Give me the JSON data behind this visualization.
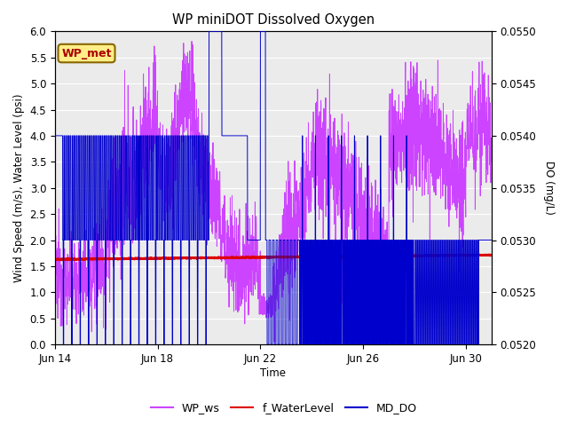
{
  "title": "WP miniDOT Dissolved Oxygen",
  "xlabel": "Time",
  "ylabel_left": "Wind Speed (m/s), Water Level (psi)",
  "ylabel_right": "DO (mg/L)",
  "ylim_left": [
    0.0,
    6.0
  ],
  "ylim_right": [
    0.052,
    0.055
  ],
  "yticks_left": [
    0.0,
    0.5,
    1.0,
    1.5,
    2.0,
    2.5,
    3.0,
    3.5,
    4.0,
    4.5,
    5.0,
    5.5,
    6.0
  ],
  "yticks_right": [
    0.052,
    0.0525,
    0.053,
    0.0535,
    0.054,
    0.0545,
    0.055
  ],
  "xtick_labels": [
    "Jun 14",
    "Jun 18",
    "Jun 22",
    "Jun 26",
    "Jun 30"
  ],
  "xtick_positions": [
    0,
    4,
    8,
    12,
    16
  ],
  "color_ws": "#CC44FF",
  "color_wl": "#DD0000",
  "color_do": "#0000CC",
  "annotation_text": "WP_met",
  "annotation_color": "#AA0000",
  "annotation_bg": "#FFEE88",
  "annotation_border": "#886600",
  "legend_labels": [
    "WP_ws",
    "f_WaterLevel",
    "MD_DO"
  ],
  "background_color": "#EBEBEB",
  "grid_color": "#FFFFFF",
  "n_days": 17
}
